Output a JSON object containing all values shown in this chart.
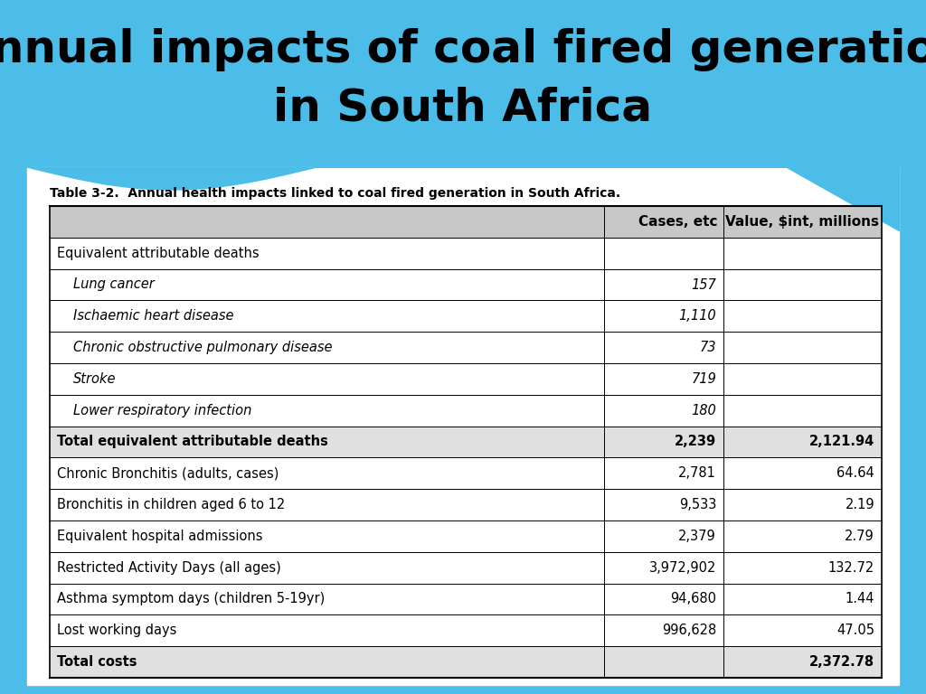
{
  "title_line1": "Annual impacts of coal fired generation",
  "title_line2": "in South Africa",
  "table_caption": "Table 3-2.  Annual health impacts linked to coal fired generation in South Africa.",
  "rows": [
    {
      "label": "Equivalent attributable deaths",
      "cases": "",
      "value": "",
      "bold": false,
      "italic": false,
      "indent": false
    },
    {
      "label": "Lung cancer",
      "cases": "157",
      "value": "",
      "bold": false,
      "italic": true,
      "indent": true
    },
    {
      "label": "Ischaemic heart disease",
      "cases": "1,110",
      "value": "",
      "bold": false,
      "italic": true,
      "indent": true
    },
    {
      "label": "Chronic obstructive pulmonary disease",
      "cases": "73",
      "value": "",
      "bold": false,
      "italic": true,
      "indent": true
    },
    {
      "label": "Stroke",
      "cases": "719",
      "value": "",
      "bold": false,
      "italic": true,
      "indent": true
    },
    {
      "label": "Lower respiratory infection",
      "cases": "180",
      "value": "",
      "bold": false,
      "italic": true,
      "indent": true
    },
    {
      "label": "Total equivalent attributable deaths",
      "cases": "2,239",
      "value": "2,121.94",
      "bold": true,
      "italic": false,
      "indent": false
    },
    {
      "label": "Chronic Bronchitis (adults, cases)",
      "cases": "2,781",
      "value": "64.64",
      "bold": false,
      "italic": false,
      "indent": false
    },
    {
      "label": "Bronchitis in children aged 6 to 12",
      "cases": "9,533",
      "value": "2.19",
      "bold": false,
      "italic": false,
      "indent": false
    },
    {
      "label": "Equivalent hospital admissions",
      "cases": "2,379",
      "value": "2.79",
      "bold": false,
      "italic": false,
      "indent": false
    },
    {
      "label": "Restricted Activity Days (all ages)",
      "cases": "3,972,902",
      "value": "132.72",
      "bold": false,
      "italic": false,
      "indent": false
    },
    {
      "label": "Asthma symptom days (children 5-19yr)",
      "cases": "94,680",
      "value": "1.44",
      "bold": false,
      "italic": false,
      "indent": false
    },
    {
      "label": "Lost working days",
      "cases": "996,628",
      "value": "47.05",
      "bold": false,
      "italic": false,
      "indent": false
    },
    {
      "label": "Total costs",
      "cases": "",
      "value": "2,372.78",
      "bold": true,
      "italic": false,
      "indent": false
    }
  ],
  "header_bg": "#c8c8c8",
  "bold_row_bg": "#e0e0e0",
  "normal_row_bg": "#ffffff",
  "slide_bg": "#4bbde8",
  "white_card_bg": "#f0f0f0",
  "title_color": "#000000",
  "col1_header": "Cases, etc",
  "col2_header": "Value, $int, millions",
  "title_fontsize": 36,
  "caption_fontsize": 10,
  "header_fontsize": 11,
  "data_fontsize": 10.5
}
